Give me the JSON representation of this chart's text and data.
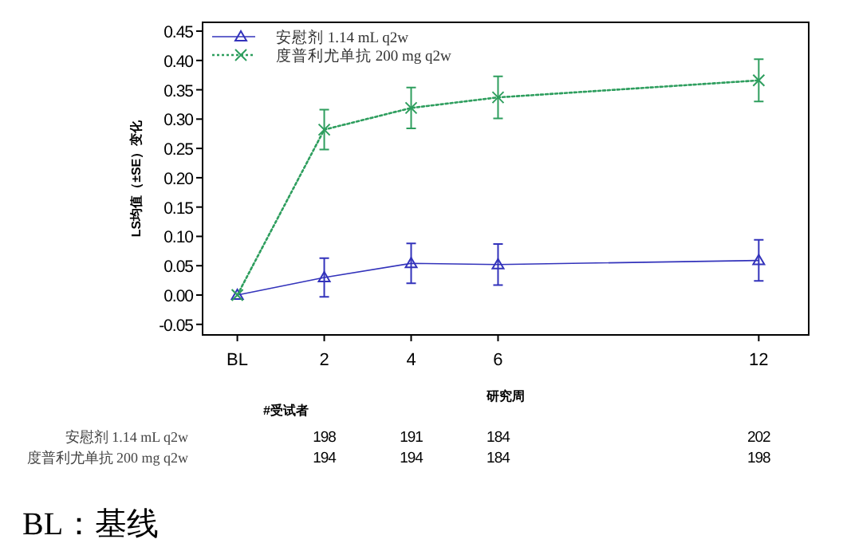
{
  "chart_data": {
    "type": "line",
    "xlabel": "研究周",
    "ylabel": "LS均值（±SE）变化",
    "x": [
      0,
      2,
      4,
      6,
      12
    ],
    "xlim": [
      -0.8,
      13.15
    ],
    "xticks": [
      {
        "value": 0,
        "label": "BL"
      },
      2,
      4,
      6,
      12
    ],
    "ylim": [
      -0.068,
      0.465
    ],
    "yticks": [
      {
        "value": -0.05,
        "label": "-0.05"
      },
      {
        "value": 0,
        "label": "0.00"
      },
      {
        "value": 0.05,
        "label": "0.05"
      },
      {
        "value": 0.1,
        "label": "0.10"
      },
      {
        "value": 0.15,
        "label": "0.15"
      },
      {
        "value": 0.2,
        "label": "0.20"
      },
      {
        "value": 0.25,
        "label": "0.25"
      },
      {
        "value": 0.3,
        "label": "0.30"
      },
      {
        "value": 0.35,
        "label": "0.35"
      },
      {
        "value": 0.4,
        "label": "0.40"
      },
      {
        "value": 0.45,
        "label": "0.45"
      }
    ],
    "series": [
      {
        "name": "安慰剂 1.14 mL q2w",
        "color": "#3333bb",
        "values": [
          0,
          0.03,
          0.054,
          0.052,
          0.059
        ],
        "errors": [
          null,
          0.033,
          0.034,
          0.035,
          0.035
        ],
        "marker": "triangle",
        "line_style": "solid"
      },
      {
        "name": "度普利尤单抗 200 mg q2w",
        "color": "#2e9e5e",
        "values": [
          0,
          0.282,
          0.319,
          0.337,
          0.366
        ],
        "errors": [
          null,
          0.034,
          0.035,
          0.036,
          0.036
        ],
        "marker": "cross",
        "line_style": "dotted"
      }
    ],
    "legend": "top left",
    "grid": false,
    "annotations": [
      "#受试者",
      "安慰剂 1.14 mL q2w",
      "198",
      "191",
      "184",
      "202",
      "度普利尤单抗 200 mg q2w",
      "194",
      "194",
      "184",
      "198",
      "BL：基线"
    ]
  }
}
